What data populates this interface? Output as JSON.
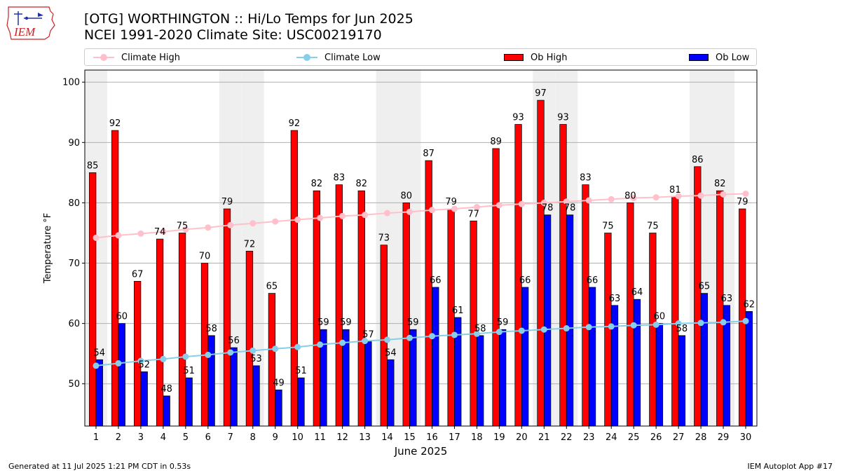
{
  "header": {
    "title": "[OTG] WORTHINGTON :: Hi/Lo Temps for Jun 2025",
    "subtitle": "NCEI 1991-2020 Climate Site: USC00219170"
  },
  "logo": {
    "text": "IEM",
    "color": "#cc2222"
  },
  "legend": {
    "climate_high": "Climate High",
    "climate_low": "Climate Low",
    "ob_high": "Ob High",
    "ob_low": "Ob Low"
  },
  "footer": {
    "generated": "Generated at 11 Jul 2025 1:21 PM CDT in 0.53s",
    "app": "IEM Autoplot App #17"
  },
  "colors": {
    "ob_high": "#ff0000",
    "ob_low": "#0000ff",
    "climate_high": "#ffc0cb",
    "climate_low": "#87ceeb",
    "weekend_band": "#efefef",
    "grid": "#b0b0b0"
  },
  "chart_data": {
    "type": "bar",
    "xlabel": "June 2025",
    "ylabel": "Temperature °F",
    "ylim": [
      43,
      102
    ],
    "yticks": [
      50,
      60,
      70,
      80,
      90,
      100
    ],
    "grid": "horizontal",
    "legend_position": "top",
    "categories": [
      "1",
      "2",
      "3",
      "4",
      "5",
      "6",
      "7",
      "8",
      "9",
      "10",
      "11",
      "12",
      "13",
      "14",
      "15",
      "16",
      "17",
      "18",
      "19",
      "20",
      "21",
      "22",
      "23",
      "24",
      "25",
      "26",
      "27",
      "28",
      "29",
      "30"
    ],
    "weekend_days": [
      1,
      7,
      8,
      14,
      15,
      21,
      22,
      28,
      29
    ],
    "series": [
      {
        "name": "Ob High",
        "type": "bar",
        "values": [
          85,
          92,
          67,
          74,
          75,
          70,
          79,
          72,
          65,
          92,
          82,
          83,
          82,
          73,
          80,
          87,
          79,
          77,
          89,
          93,
          97,
          93,
          83,
          75,
          80,
          75,
          81,
          86,
          82,
          79
        ]
      },
      {
        "name": "Ob Low",
        "type": "bar",
        "values": [
          54,
          60,
          52,
          48,
          51,
          58,
          56,
          53,
          49,
          51,
          59,
          59,
          57,
          54,
          59,
          66,
          61,
          58,
          59,
          66,
          78,
          78,
          66,
          63,
          64,
          60,
          58,
          65,
          63,
          62
        ]
      },
      {
        "name": "Climate High",
        "type": "line",
        "values": [
          74.2,
          74.6,
          74.9,
          75.2,
          75.6,
          75.9,
          76.3,
          76.6,
          76.9,
          77.2,
          77.5,
          77.8,
          78.0,
          78.3,
          78.5,
          78.8,
          79.0,
          79.3,
          79.6,
          79.8,
          80.0,
          80.2,
          80.4,
          80.6,
          80.8,
          80.9,
          81.1,
          81.2,
          81.4,
          81.5
        ]
      },
      {
        "name": "Climate Low",
        "type": "line",
        "values": [
          53.0,
          53.4,
          53.8,
          54.1,
          54.5,
          54.8,
          55.2,
          55.5,
          55.8,
          56.1,
          56.5,
          56.8,
          57.1,
          57.3,
          57.6,
          57.9,
          58.1,
          58.3,
          58.6,
          58.8,
          59.0,
          59.2,
          59.4,
          59.5,
          59.7,
          59.8,
          60.0,
          60.1,
          60.2,
          60.4
        ]
      }
    ]
  }
}
